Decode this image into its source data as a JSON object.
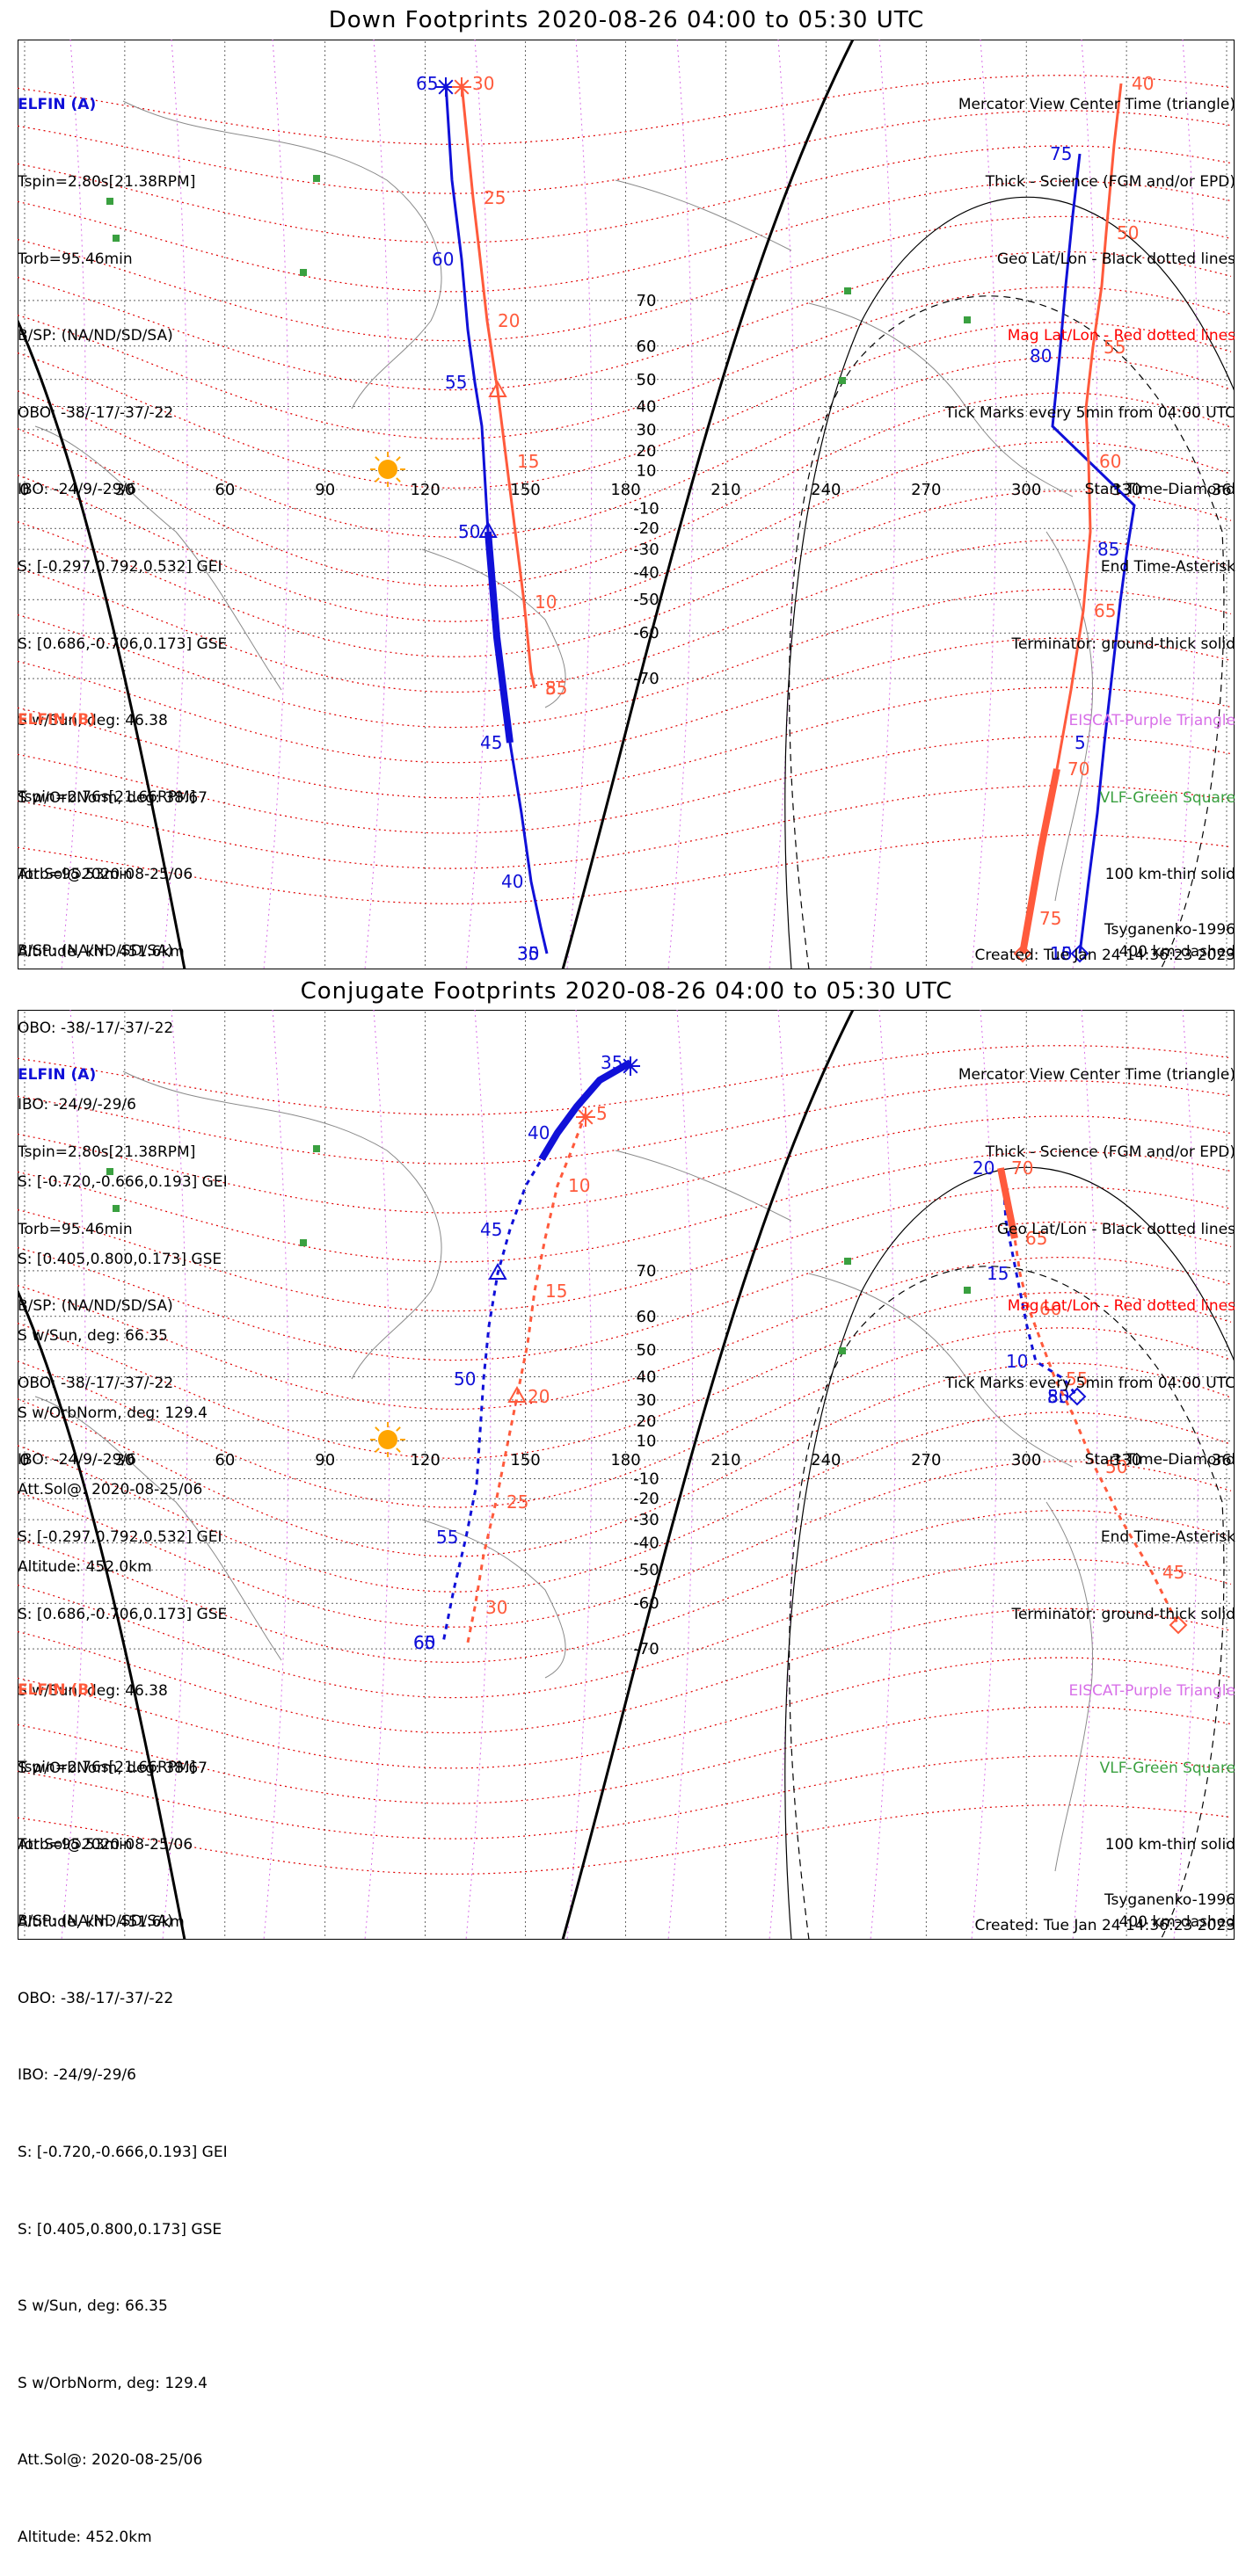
{
  "colors": {
    "elfin_a": "#1010d8",
    "elfin_b": "#ff5a3c",
    "geo_grid": "#000000",
    "mag_grid": "#e00000",
    "eiscat": "#d870e8",
    "vlf": "#3aa040",
    "sun": "#ffa500"
  },
  "panels": [
    {
      "id": "down",
      "title": "Down Footprints 2020-08-26 04:00 to 05:30 UTC",
      "elfin_a": {
        "name": "ELFIN (A)",
        "lines": [
          "Tspin=2.80s[21.38RPM]",
          "Torb=95.46min",
          "B/SP: (NA/ND/SD/SA)",
          "OBO: -38/-17/-37/-22",
          "IBO: -24/9/-29/6",
          "S: [-0.297,0.792,0.532] GEI",
          "S: [0.686,-0.706,0.173] GSE",
          "S w/Sun, deg: 46.38",
          "S w/OrbNorm, deg: 38.67",
          "Att.Sol@2020-08-25/06",
          "Altitude, km: 451.6km"
        ]
      },
      "elfin_b": {
        "name": "ELFIN (B)",
        "lines": [
          "Tspin=2.76s[21.66RPM]",
          "Torb=95.53min",
          "B/SP: (NA/ND/SD/SA)",
          "OBO: -38/-17/-37/-22",
          "IBO: -24/9/-29/6",
          "S: [-0.720,-0.666,0.193] GEI",
          "S: [0.405,0.800,0.173] GSE",
          "S w/Sun, deg: 66.35",
          "S w/OrbNorm, deg: 129.4",
          "Att.Sol@: 2020-08-25/06",
          "Altitude: 452.0km"
        ]
      },
      "legend": [
        "Mercator View Center Time (triangle)",
        "Thick - Science (FGM and/or EPD)",
        "Geo Lat/Lon - Black dotted lines",
        "Mag Lat/Lon - Red dotted lines",
        "Tick Marks every 5min from 04:00 UTC",
        "Start Time-Diamond",
        "End Time-Asterisk",
        "Terminator: ground-thick solid",
        "EISCAT-Purple Triangle",
        "VLF-Green Square",
        "100 km-thin solid",
        "400 km-dashed"
      ],
      "model": "Tsyganenko-1996",
      "created": "Created: Tue Jan 24 14:36:23 2023",
      "track_labels": {
        "a": [
          [
            "65",
            0,
            0
          ],
          [
            "60",
            0,
            1
          ],
          [
            "55",
            0,
            2
          ],
          [
            "50",
            0,
            3
          ],
          [
            "45",
            0,
            4
          ],
          [
            "40",
            0,
            5
          ],
          [
            "35",
            0,
            6
          ],
          [
            "30",
            0,
            7
          ],
          [
            "75",
            1,
            0
          ],
          [
            "80",
            1,
            1
          ],
          [
            "85",
            1,
            2
          ],
          [
            "5",
            1,
            3
          ],
          [
            "10",
            1,
            4
          ],
          [
            "15",
            1,
            5
          ]
        ],
        "b": [
          [
            "30",
            0,
            0
          ],
          [
            "25",
            0,
            1
          ],
          [
            "20",
            0,
            2
          ],
          [
            "15",
            0,
            3
          ],
          [
            "10",
            0,
            4
          ],
          [
            "5",
            0,
            5
          ],
          [
            "85",
            0,
            6
          ],
          [
            "40",
            1,
            0
          ],
          [
            "50",
            1,
            1
          ],
          [
            "55",
            1,
            2
          ],
          [
            "60",
            1,
            3
          ],
          [
            "65",
            1,
            4
          ],
          [
            "70",
            1,
            5
          ],
          [
            "75",
            1,
            6
          ]
        ]
      }
    },
    {
      "id": "conjugate",
      "title": "Conjugate Footprints 2020-08-26 04:00 to 05:30 UTC",
      "elfin_a": {
        "name": "ELFIN (A)",
        "lines": [
          "Tspin=2.80s[21.38RPM]",
          "Torb=95.46min",
          "B/SP: (NA/ND/SD/SA)",
          "OBO: -38/-17/-37/-22",
          "IBO: -24/9/-29/6",
          "S: [-0.297,0.792,0.532] GEI",
          "S: [0.686,-0.706,0.173] GSE",
          "S w/Sun, deg: 46.38",
          "S w/OrbNorm, deg: 38.67",
          "Att.Sol@2020-08-25/06",
          "Altitude, km: 451.6km"
        ]
      },
      "elfin_b": {
        "name": "ELFIN (B)",
        "lines": [
          "Tspin=2.76s[21.66RPM]",
          "Torb=95.53min",
          "B/SP: (NA/ND/SD/SA)",
          "OBO: -38/-17/-37/-22",
          "IBO: -24/9/-29/6",
          "S: [-0.720,-0.666,0.193] GEI",
          "S: [0.405,0.800,0.173] GSE",
          "S w/Sun, deg: 66.35",
          "S w/OrbNorm, deg: 129.4",
          "Att.Sol@: 2020-08-25/06",
          "Altitude: 452.0km"
        ]
      },
      "legend": [
        "Mercator View Center Time (triangle)",
        "Thick - Science (FGM and/or EPD)",
        "Geo Lat/Lon - Black dotted lines",
        "Mag Lat/Lon - Red dotted lines",
        "Tick Marks every 5min from 04:00 UTC",
        "Start Time-Diamond",
        "End Time-Asterisk",
        "Terminator: ground-thick solid",
        "EISCAT-Purple Triangle",
        "VLF-Green Square",
        "100 km-thin solid",
        "400 km-dashed"
      ],
      "model": "Tsyganenko-1996",
      "created": "Created: Tue Jan 24 14:36:23 2023",
      "track_labels": {
        "a": [
          [
            "35",
            0,
            0
          ],
          [
            "40",
            0,
            1
          ],
          [
            "45",
            0,
            2
          ],
          [
            "50",
            0,
            3
          ],
          [
            "55",
            0,
            4
          ],
          [
            "60",
            0,
            5
          ],
          [
            "65",
            0,
            6
          ],
          [
            "20",
            1,
            0
          ],
          [
            "15",
            1,
            1
          ],
          [
            "10",
            1,
            2
          ],
          [
            "5",
            1,
            3
          ],
          [
            "85",
            1,
            4
          ],
          [
            "80",
            1,
            5
          ]
        ],
        "b": [
          [
            "5",
            0,
            0
          ],
          [
            "10",
            0,
            1
          ],
          [
            "15",
            0,
            2
          ],
          [
            "20",
            0,
            3
          ],
          [
            "25",
            0,
            4
          ],
          [
            "30",
            0,
            5
          ],
          [
            "70",
            1,
            0
          ],
          [
            "65",
            1,
            1
          ],
          [
            "60",
            1,
            2
          ],
          [
            "55",
            1,
            3
          ],
          [
            "50",
            1,
            4
          ],
          [
            "45",
            1,
            5
          ]
        ]
      }
    }
  ],
  "axis": {
    "lon_ticks": [
      "0",
      "30",
      "60",
      "90",
      "120",
      "150",
      "180",
      "210",
      "240",
      "270",
      "300",
      "330",
      "360"
    ],
    "lat_ticks": [
      "70",
      "60",
      "50",
      "40",
      "30",
      "20",
      "10",
      "-10",
      "-20",
      "-30",
      "-40",
      "-50",
      "-60",
      "-70"
    ]
  }
}
